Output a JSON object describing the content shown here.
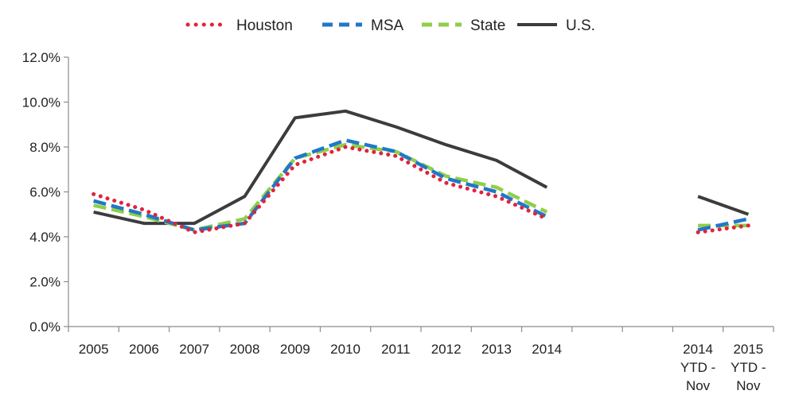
{
  "chart_data": {
    "type": "line",
    "categories": [
      [
        "2005"
      ],
      [
        "2006"
      ],
      [
        "2007"
      ],
      [
        "2008"
      ],
      [
        "2009"
      ],
      [
        "2010"
      ],
      [
        "2011"
      ],
      [
        "2012"
      ],
      [
        "2013"
      ],
      [
        "2014"
      ],
      [
        ""
      ],
      [
        ""
      ],
      [
        "2014",
        "YTD -",
        "Nov"
      ],
      [
        "2015",
        "YTD -",
        "Nov"
      ]
    ],
    "ylim": [
      0,
      12
    ],
    "yticks": [
      "0.0%",
      "2.0%",
      "4.0%",
      "6.0%",
      "8.0%",
      "10.0%",
      "12.0%"
    ],
    "legend_position": "top",
    "series": [
      {
        "name": "Houston",
        "color": "#e0243c",
        "style": "dotted",
        "values": [
          5.9,
          5.2,
          4.2,
          4.6,
          7.2,
          8.0,
          7.6,
          6.4,
          5.8,
          4.8,
          null,
          null,
          4.2,
          4.5
        ]
      },
      {
        "name": "MSA",
        "color": "#1f78c8",
        "style": "dashed",
        "values": [
          5.6,
          5.0,
          4.3,
          4.6,
          7.5,
          8.3,
          7.8,
          6.6,
          6.0,
          4.9,
          null,
          null,
          4.3,
          4.8
        ]
      },
      {
        "name": "State",
        "color": "#8fce4a",
        "style": "dashed",
        "values": [
          5.4,
          4.9,
          4.3,
          4.8,
          7.5,
          8.1,
          7.8,
          6.7,
          6.2,
          5.1,
          null,
          null,
          4.5,
          4.5
        ]
      },
      {
        "name": "U.S.",
        "color": "#3c3c3c",
        "style": "solid",
        "values": [
          5.1,
          4.6,
          4.6,
          5.8,
          9.3,
          9.6,
          8.9,
          8.1,
          7.4,
          6.2,
          null,
          null,
          5.8,
          5.0
        ]
      }
    ]
  }
}
